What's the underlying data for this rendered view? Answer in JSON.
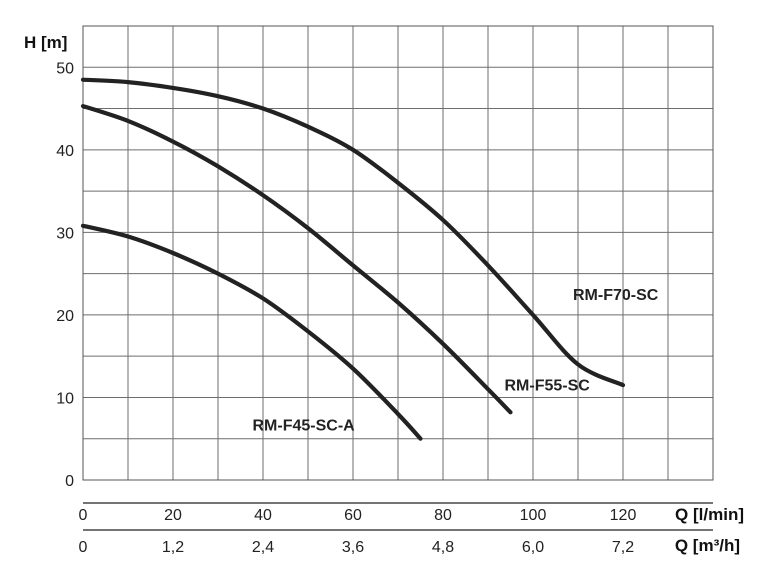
{
  "chart_data": {
    "type": "line",
    "ylabel": "H [m]",
    "xlabel": "Q [l/min]",
    "xlabel_secondary": "Q [m³/h]",
    "xlim": [
      0,
      140
    ],
    "ylim": [
      0,
      55
    ],
    "x_grid_step": 10,
    "y_grid_step": 5,
    "x_ticks": [
      {
        "value": 0,
        "label": "0"
      },
      {
        "value": 20,
        "label": "20"
      },
      {
        "value": 40,
        "label": "40"
      },
      {
        "value": 60,
        "label": "60"
      },
      {
        "value": 80,
        "label": "80"
      },
      {
        "value": 100,
        "label": "100"
      },
      {
        "value": 120,
        "label": "120"
      }
    ],
    "x_ticks_secondary": [
      {
        "value": 0,
        "label": "0"
      },
      {
        "value": 20,
        "label": "1,2"
      },
      {
        "value": 40,
        "label": "2,4"
      },
      {
        "value": 60,
        "label": "3,6"
      },
      {
        "value": 80,
        "label": "4,8"
      },
      {
        "value": 100,
        "label": "6,0"
      },
      {
        "value": 120,
        "label": "7,2"
      }
    ],
    "y_ticks": [
      {
        "value": 0,
        "label": "0"
      },
      {
        "value": 10,
        "label": "10"
      },
      {
        "value": 20,
        "label": "20"
      },
      {
        "value": 30,
        "label": "30"
      },
      {
        "value": 40,
        "label": "40"
      },
      {
        "value": 50,
        "label": "50"
      }
    ],
    "grid": true,
    "series": [
      {
        "name": "RM-F70-SC",
        "color": "#222222",
        "points": [
          [
            0,
            48.5
          ],
          [
            10,
            48.2
          ],
          [
            20,
            47.5
          ],
          [
            30,
            46.5
          ],
          [
            40,
            45
          ],
          [
            50,
            42.8
          ],
          [
            60,
            40
          ],
          [
            70,
            36
          ],
          [
            80,
            31.5
          ],
          [
            90,
            26
          ],
          [
            100,
            20
          ],
          [
            110,
            14
          ],
          [
            120,
            11.5
          ]
        ]
      },
      {
        "name": "RM-F55-SC",
        "color": "#222222",
        "points": [
          [
            0,
            45.3
          ],
          [
            10,
            43.5
          ],
          [
            20,
            41
          ],
          [
            30,
            38
          ],
          [
            40,
            34.5
          ],
          [
            50,
            30.5
          ],
          [
            60,
            26
          ],
          [
            70,
            21.5
          ],
          [
            80,
            16.5
          ],
          [
            90,
            11
          ],
          [
            95,
            8.2
          ]
        ]
      },
      {
        "name": "RM-F45-SC-A",
        "color": "#222222",
        "points": [
          [
            0,
            30.8
          ],
          [
            10,
            29.5
          ],
          [
            20,
            27.5
          ],
          [
            30,
            25
          ],
          [
            40,
            22
          ],
          [
            50,
            18
          ],
          [
            60,
            13.5
          ],
          [
            70,
            8
          ],
          [
            75,
            5
          ]
        ]
      }
    ]
  }
}
